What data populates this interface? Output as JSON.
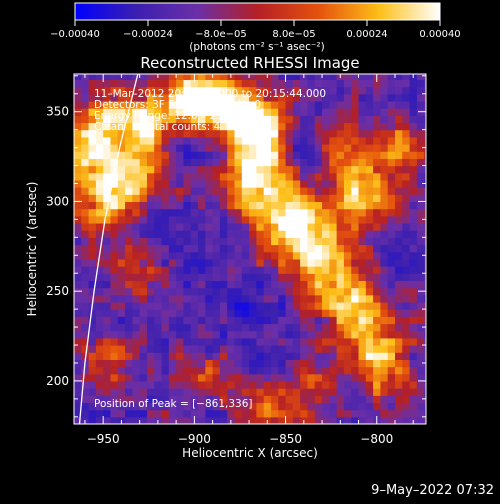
{
  "chart_data": {
    "type": "heatmap",
    "title": "Reconstructed RHESSI Image",
    "xlabel": "Heliocentric X (arcsec)",
    "ylabel": "Heliocentric Y (arcsec)",
    "xlim": [
      -966,
      -773
    ],
    "ylim": [
      176,
      371
    ],
    "xticks": [
      -950,
      -900,
      -850,
      -800
    ],
    "yticks": [
      200,
      250,
      300,
      350
    ],
    "x_tick_labels": [
      "−950",
      "−900",
      "−850",
      "−800"
    ],
    "y_tick_labels": [
      "200",
      "250",
      "300",
      "350"
    ],
    "colorbar": {
      "range": [
        -0.0004,
        0.0004
      ],
      "ticks": [
        -0.0004,
        -0.00024,
        -8e-05,
        8e-05,
        0.00024,
        0.0004
      ],
      "tick_labels": [
        "−0.00040",
        "−0.00024",
        "−8.0e−05",
        "8.0e−05",
        "0.00024",
        "0.00040"
      ],
      "units": "(photons cm⁻² s⁻¹ asec⁻²)",
      "colormap": [
        "#0000ff",
        "#3a1fb0",
        "#6a2fa8",
        "#b52025",
        "#e4510d",
        "#fdbf18",
        "#ffffff"
      ]
    },
    "annotations": [
      "11–Mar–2012 20:09:44.000 to 20:15:44.000",
      "Detectors: 3F 5F 6F 7F 8F, Att 0",
      "Energy Range: 12.0 – 25.0 keV",
      "Clean      Total counts: 4.14E+03"
    ],
    "peak_label": "Position of Peak = [−861,336]",
    "peak": [
      -861,
      336
    ],
    "limb_curve": [
      [
        -931,
        371
      ],
      [
        -941,
        330
      ],
      [
        -949,
        290
      ],
      [
        -955,
        250
      ],
      [
        -960,
        210
      ],
      [
        -963,
        176
      ]
    ],
    "blobs": [
      {
        "x": -928,
        "y": 345,
        "sx": 16,
        "sy": 12,
        "a": 1.0
      },
      {
        "x": -958,
        "y": 330,
        "sx": 12,
        "sy": 18,
        "a": 0.9
      },
      {
        "x": -945,
        "y": 300,
        "sx": 13,
        "sy": 14,
        "a": 0.8
      },
      {
        "x": -930,
        "y": 318,
        "sx": 10,
        "sy": 10,
        "a": 0.7
      },
      {
        "x": -900,
        "y": 360,
        "sx": 12,
        "sy": 12,
        "a": 0.9
      },
      {
        "x": -880,
        "y": 352,
        "sx": 14,
        "sy": 10,
        "a": 1.05
      },
      {
        "x": -862,
        "y": 336,
        "sx": 12,
        "sy": 13,
        "a": 1.15
      },
      {
        "x": -868,
        "y": 312,
        "sx": 12,
        "sy": 12,
        "a": 1.0
      },
      {
        "x": -848,
        "y": 290,
        "sx": 14,
        "sy": 12,
        "a": 1.15
      },
      {
        "x": -830,
        "y": 265,
        "sx": 14,
        "sy": 14,
        "a": 0.95
      },
      {
        "x": -812,
        "y": 240,
        "sx": 12,
        "sy": 14,
        "a": 0.85
      },
      {
        "x": -798,
        "y": 212,
        "sx": 12,
        "sy": 14,
        "a": 0.85
      },
      {
        "x": -807,
        "y": 302,
        "sx": 12,
        "sy": 12,
        "a": 0.95
      },
      {
        "x": -790,
        "y": 330,
        "sx": 12,
        "sy": 10,
        "a": 0.7
      },
      {
        "x": -820,
        "y": 332,
        "sx": 10,
        "sy": 10,
        "a": 0.6
      },
      {
        "x": -932,
        "y": 262,
        "sx": 10,
        "sy": 10,
        "a": 0.5
      },
      {
        "x": -948,
        "y": 212,
        "sx": 10,
        "sy": 10,
        "a": 0.55
      },
      {
        "x": -895,
        "y": 205,
        "sx": 10,
        "sy": 8,
        "a": 0.45
      },
      {
        "x": -860,
        "y": 185,
        "sx": 14,
        "sy": 8,
        "a": 0.65
      },
      {
        "x": -835,
        "y": 198,
        "sx": 10,
        "sy": 8,
        "a": 0.5
      },
      {
        "x": -905,
        "y": 330,
        "sx": 8,
        "sy": 8,
        "a": -0.4
      },
      {
        "x": -895,
        "y": 280,
        "sx": 14,
        "sy": 14,
        "a": -0.15
      },
      {
        "x": -870,
        "y": 240,
        "sx": 12,
        "sy": 12,
        "a": -0.35
      },
      {
        "x": -843,
        "y": 332,
        "sx": 8,
        "sy": 8,
        "a": -0.45
      },
      {
        "x": -920,
        "y": 290,
        "sx": 8,
        "sy": 8,
        "a": -0.3
      },
      {
        "x": -790,
        "y": 260,
        "sx": 10,
        "sy": 10,
        "a": -0.25
      }
    ]
  },
  "footer": {
    "timestamp": "9–May–2022 07:32"
  }
}
